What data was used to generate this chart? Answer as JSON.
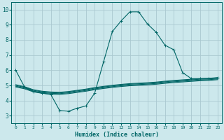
{
  "xlabel": "Humidex (Indice chaleur)",
  "xlim": [
    -0.5,
    23.5
  ],
  "ylim": [
    2.5,
    10.5
  ],
  "xticks": [
    0,
    1,
    2,
    3,
    4,
    5,
    6,
    7,
    8,
    9,
    10,
    11,
    12,
    13,
    14,
    15,
    16,
    17,
    18,
    19,
    20,
    21,
    22,
    23
  ],
  "yticks": [
    3,
    4,
    5,
    6,
    7,
    8,
    9,
    10
  ],
  "background_color": "#cce8ec",
  "grid_color": "#aac8d0",
  "line_color": "#006666",
  "lines": [
    {
      "x": [
        0,
        1,
        2,
        3,
        4,
        5,
        6,
        7,
        8,
        9,
        10,
        11,
        12,
        13,
        14,
        15,
        16,
        17,
        18,
        19,
        20,
        21,
        22,
        23
      ],
      "y": [
        6.0,
        4.9,
        4.6,
        4.5,
        4.4,
        3.35,
        3.3,
        3.5,
        3.65,
        4.5,
        6.55,
        8.55,
        9.25,
        9.85,
        9.85,
        9.05,
        8.5,
        7.65,
        7.35,
        5.85,
        5.45,
        5.45,
        5.45,
        5.5
      ],
      "marker": "+"
    },
    {
      "x": [
        0,
        1,
        2,
        3,
        4,
        5,
        6,
        7,
        8,
        9,
        10,
        11,
        12,
        13,
        14,
        15,
        16,
        17,
        18,
        19,
        20,
        21,
        22,
        23
      ],
      "y": [
        5.05,
        4.92,
        4.72,
        4.62,
        4.57,
        4.55,
        4.6,
        4.68,
        4.76,
        4.86,
        4.94,
        5.01,
        5.07,
        5.12,
        5.15,
        5.18,
        5.22,
        5.28,
        5.33,
        5.37,
        5.41,
        5.45,
        5.47,
        5.52
      ],
      "marker": null
    },
    {
      "x": [
        0,
        1,
        2,
        3,
        4,
        5,
        6,
        7,
        8,
        9,
        10,
        11,
        12,
        13,
        14,
        15,
        16,
        17,
        18,
        19,
        20,
        21,
        22,
        23
      ],
      "y": [
        5.0,
        4.88,
        4.68,
        4.58,
        4.53,
        4.51,
        4.56,
        4.64,
        4.72,
        4.82,
        4.9,
        4.97,
        5.03,
        5.08,
        5.11,
        5.14,
        5.18,
        5.24,
        5.29,
        5.33,
        5.37,
        5.41,
        5.43,
        5.48
      ],
      "marker": null
    },
    {
      "x": [
        0,
        1,
        2,
        3,
        4,
        5,
        6,
        7,
        8,
        9,
        10,
        11,
        12,
        13,
        14,
        15,
        16,
        17,
        18,
        19,
        20,
        21,
        22,
        23
      ],
      "y": [
        4.95,
        4.83,
        4.63,
        4.53,
        4.48,
        4.46,
        4.51,
        4.59,
        4.67,
        4.77,
        4.85,
        4.92,
        4.98,
        5.03,
        5.06,
        5.09,
        5.13,
        5.19,
        5.24,
        5.28,
        5.32,
        5.36,
        5.38,
        5.43
      ],
      "marker": null
    },
    {
      "x": [
        0,
        1,
        2,
        3,
        4,
        5,
        6,
        7,
        8,
        9,
        10,
        11,
        12,
        13,
        14,
        15,
        16,
        17,
        18,
        19,
        20,
        21,
        22,
        23
      ],
      "y": [
        4.9,
        4.78,
        4.58,
        4.48,
        4.43,
        4.41,
        4.46,
        4.54,
        4.62,
        4.72,
        4.8,
        4.87,
        4.93,
        4.98,
        5.01,
        5.04,
        5.08,
        5.14,
        5.19,
        5.23,
        5.27,
        5.31,
        5.33,
        5.38
      ],
      "marker": null
    }
  ]
}
